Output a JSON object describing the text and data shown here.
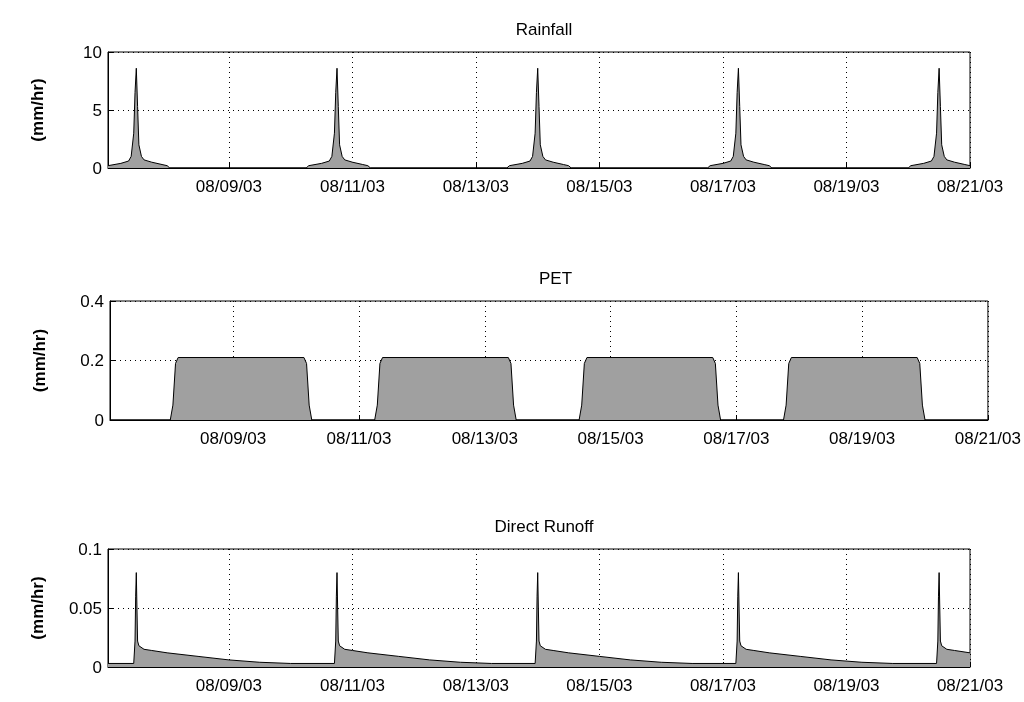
{
  "chart_data": [
    {
      "type": "area",
      "title": "Rainfall",
      "ylabel": "(mm/hr)",
      "grid": true,
      "xlim": [
        "--08-07T01:00",
        "--08-21T00:00"
      ],
      "ylim": [
        0,
        10
      ],
      "yticks": [
        0,
        5,
        10
      ],
      "xticks": [
        {
          "value": "--08-09",
          "label": "08/09/03"
        },
        {
          "value": "--08-11",
          "label": "08/11/03"
        },
        {
          "value": "--08-13",
          "label": "08/13/03"
        },
        {
          "value": "--08-15",
          "label": "08/15/03"
        },
        {
          "value": "--08-17",
          "label": "08/17/03"
        },
        {
          "value": "--08-19",
          "label": "08/19/03"
        },
        {
          "value": "--08-21",
          "label": "08/21/03"
        }
      ],
      "x": [
        "--08-07T01:00",
        "--08-07T06:00",
        "--08-07T09:00",
        "--08-07T10:00",
        "--08-07T11:00",
        "--08-07T11:30",
        "--08-07T12:00",
        "--08-07T12:30",
        "--08-07T13:00",
        "--08-07T14:00",
        "--08-07T15:00",
        "--08-07T18:00",
        "--08-07T22:00",
        "--08-08T00:00",
        "--08-08T01:00",
        "--08-10T06:00",
        "--08-10T07:00",
        "--08-10T12:00",
        "--08-10T15:00",
        "--08-10T16:00",
        "--08-10T17:00",
        "--08-10T17:30",
        "--08-10T18:00",
        "--08-10T18:30",
        "--08-10T19:00",
        "--08-10T20:00",
        "--08-10T21:00",
        "--08-11T00:00",
        "--08-11T04:00",
        "--08-11T06:00",
        "--08-11T07:00",
        "--08-13T12:00",
        "--08-13T13:00",
        "--08-13T18:00",
        "--08-13T21:00",
        "--08-13T22:00",
        "--08-13T23:00",
        "--08-13T23:30",
        "--08-14T00:00",
        "--08-14T00:30",
        "--08-14T01:00",
        "--08-14T02:00",
        "--08-14T03:00",
        "--08-14T06:00",
        "--08-14T10:00",
        "--08-14T12:00",
        "--08-14T13:00",
        "--08-16T18:00",
        "--08-16T19:00",
        "--08-17T00:00",
        "--08-17T03:00",
        "--08-17T04:00",
        "--08-17T05:00",
        "--08-17T05:30",
        "--08-17T06:00",
        "--08-17T06:30",
        "--08-17T07:00",
        "--08-17T08:00",
        "--08-17T09:00",
        "--08-17T12:00",
        "--08-17T16:00",
        "--08-17T18:00",
        "--08-17T19:00",
        "--08-20T00:00",
        "--08-20T01:00",
        "--08-20T06:00",
        "--08-20T09:00",
        "--08-20T10:00",
        "--08-20T11:00",
        "--08-20T11:30",
        "--08-20T12:00",
        "--08-20T12:30",
        "--08-20T13:00",
        "--08-20T14:00",
        "--08-20T15:00",
        "--08-20T18:00",
        "--08-20T22:00",
        "--08-21T00:00"
      ],
      "series": [
        {
          "color": "#a0a0a0",
          "values": [
            0.2,
            0.4,
            0.6,
            1.0,
            3.0,
            6.5,
            8.6,
            5.3,
            2.0,
            1.0,
            0.7,
            0.5,
            0.3,
            0.2,
            0,
            0,
            0.2,
            0.4,
            0.6,
            1.0,
            3.0,
            6.5,
            8.6,
            5.3,
            2.0,
            1.0,
            0.7,
            0.5,
            0.3,
            0.2,
            0,
            0,
            0.2,
            0.4,
            0.6,
            1.0,
            3.0,
            6.5,
            8.6,
            5.3,
            2.0,
            1.0,
            0.7,
            0.5,
            0.3,
            0.2,
            0,
            0,
            0.2,
            0.4,
            0.6,
            1.0,
            3.0,
            6.5,
            8.6,
            5.3,
            2.0,
            1.0,
            0.7,
            0.5,
            0.3,
            0.2,
            0,
            0,
            0.2,
            0.4,
            0.6,
            1.0,
            3.0,
            6.5,
            8.6,
            5.3,
            2.0,
            1.0,
            0.7,
            0.5,
            0.3,
            0.2
          ]
        }
      ]
    },
    {
      "type": "area",
      "title": "PET",
      "ylabel": "(mm/hr)",
      "grid": true,
      "xlim": [
        "--08-07T01:00",
        "--08-21T00:00"
      ],
      "ylim": [
        0,
        0.4
      ],
      "yticks": [
        0,
        0.2,
        0.4
      ],
      "xticks": [
        {
          "value": "--08-09",
          "label": "08/09/03"
        },
        {
          "value": "--08-11",
          "label": "08/11/03"
        },
        {
          "value": "--08-13",
          "label": "08/13/03"
        },
        {
          "value": "--08-15",
          "label": "08/15/03"
        },
        {
          "value": "--08-17",
          "label": "08/17/03"
        },
        {
          "value": "--08-19",
          "label": "08/19/03"
        },
        {
          "value": "--08-21",
          "label": "08/21/03"
        }
      ],
      "x": [
        "--08-07T01:00",
        "--08-08T00:00",
        "--08-08T01:00",
        "--08-08T02:00",
        "--08-08T03:00",
        "--08-10T03:00",
        "--08-10T04:00",
        "--08-10T05:00",
        "--08-10T06:00",
        "--08-11T06:00",
        "--08-11T07:00",
        "--08-11T08:00",
        "--08-11T09:00",
        "--08-13T09:00",
        "--08-13T10:00",
        "--08-13T11:00",
        "--08-13T12:00",
        "--08-14T12:00",
        "--08-14T13:00",
        "--08-14T14:00",
        "--08-14T15:00",
        "--08-16T15:00",
        "--08-16T16:00",
        "--08-16T17:00",
        "--08-16T18:00",
        "--08-17T18:00",
        "--08-17T19:00",
        "--08-17T20:00",
        "--08-17T21:00",
        "--08-19T21:00",
        "--08-19T22:00",
        "--08-19T23:00",
        "--08-20T00:00",
        "--08-21T00:00"
      ],
      "series": [
        {
          "color": "#a0a0a0",
          "values": [
            0,
            0,
            0.05,
            0.19,
            0.21,
            0.21,
            0.19,
            0.05,
            0,
            0,
            0.05,
            0.19,
            0.21,
            0.21,
            0.19,
            0.05,
            0,
            0,
            0.05,
            0.19,
            0.21,
            0.21,
            0.19,
            0.05,
            0,
            0,
            0.05,
            0.19,
            0.21,
            0.21,
            0.19,
            0.05,
            0,
            0
          ]
        }
      ]
    },
    {
      "type": "area",
      "title": "Direct Runoff",
      "ylabel": "(mm/hr)",
      "grid": true,
      "xlim": [
        "--08-07T01:00",
        "--08-21T00:00"
      ],
      "ylim": [
        0,
        0.1
      ],
      "yticks": [
        0,
        0.05,
        0.1
      ],
      "xticks": [
        {
          "value": "--08-09",
          "label": "08/09/03"
        },
        {
          "value": "--08-11",
          "label": "08/11/03"
        },
        {
          "value": "--08-13",
          "label": "08/13/03"
        },
        {
          "value": "--08-15",
          "label": "08/15/03"
        },
        {
          "value": "--08-17",
          "label": "08/17/03"
        },
        {
          "value": "--08-19",
          "label": "08/19/03"
        },
        {
          "value": "--08-21",
          "label": "08/21/03"
        }
      ],
      "x": [
        "--08-07T01:00",
        "--08-07T11:00",
        "--08-07T11:30",
        "--08-07T11:45",
        "--08-07T12:00",
        "--08-07T12:15",
        "--08-07T12:30",
        "--08-07T13:00",
        "--08-07T15:00",
        "--08-07T18:00",
        "--08-08T00:00",
        "--08-08T12:00",
        "--08-09T00:00",
        "--08-09T12:00",
        "--08-10T00:00",
        "--08-10T17:00",
        "--08-10T17:30",
        "--08-10T17:45",
        "--08-10T18:00",
        "--08-10T18:15",
        "--08-10T18:30",
        "--08-10T19:00",
        "--08-10T21:00",
        "--08-11T00:00",
        "--08-11T06:00",
        "--08-11T18:00",
        "--08-12T06:00",
        "--08-12T18:00",
        "--08-13T06:00",
        "--08-13T23:00",
        "--08-13T23:30",
        "--08-13T23:45",
        "--08-14T00:00",
        "--08-14T00:15",
        "--08-14T00:30",
        "--08-14T01:00",
        "--08-14T03:00",
        "--08-14T06:00",
        "--08-14T12:00",
        "--08-15T00:00",
        "--08-15T12:00",
        "--08-16T00:00",
        "--08-16T12:00",
        "--08-17T05:00",
        "--08-17T05:30",
        "--08-17T05:45",
        "--08-17T06:00",
        "--08-17T06:15",
        "--08-17T06:30",
        "--08-17T07:00",
        "--08-17T09:00",
        "--08-17T12:00",
        "--08-17T18:00",
        "--08-18T06:00",
        "--08-18T18:00",
        "--08-19T06:00",
        "--08-19T18:00",
        "--08-20T11:00",
        "--08-20T11:30",
        "--08-20T11:45",
        "--08-20T12:00",
        "--08-20T12:15",
        "--08-20T12:30",
        "--08-20T13:00",
        "--08-20T15:00",
        "--08-20T18:00",
        "--08-21T00:00"
      ],
      "series": [
        {
          "color": "#a0a0a0",
          "values": [
            0.003,
            0.003,
            0.022,
            0.06,
            0.08,
            0.05,
            0.022,
            0.018,
            0.015,
            0.014,
            0.012,
            0.009,
            0.006,
            0.004,
            0.003,
            0.003,
            0.022,
            0.06,
            0.08,
            0.05,
            0.022,
            0.018,
            0.015,
            0.014,
            0.012,
            0.009,
            0.006,
            0.004,
            0.003,
            0.003,
            0.022,
            0.06,
            0.08,
            0.05,
            0.022,
            0.018,
            0.015,
            0.014,
            0.012,
            0.009,
            0.006,
            0.004,
            0.003,
            0.003,
            0.022,
            0.06,
            0.08,
            0.05,
            0.022,
            0.018,
            0.015,
            0.014,
            0.012,
            0.009,
            0.006,
            0.004,
            0.003,
            0.003,
            0.022,
            0.06,
            0.08,
            0.05,
            0.022,
            0.018,
            0.015,
            0.014,
            0.012
          ]
        }
      ]
    }
  ]
}
